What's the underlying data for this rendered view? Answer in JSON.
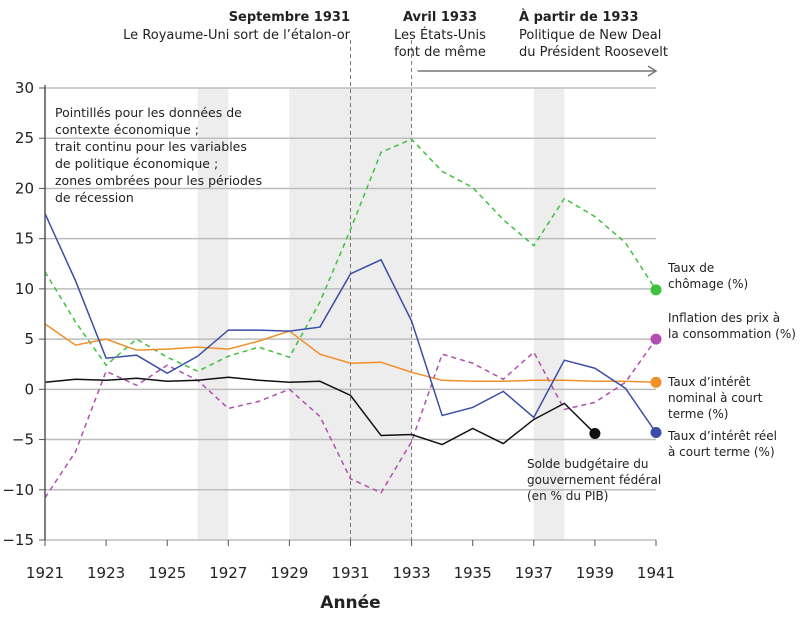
{
  "chart_data": {
    "type": "line",
    "xlabel": "Année",
    "ylabel": "",
    "xlim": [
      1921,
      1941
    ],
    "ylim": [
      -15,
      30
    ],
    "xticks": [
      1921,
      1923,
      1925,
      1927,
      1929,
      1931,
      1933,
      1935,
      1937,
      1939,
      1941
    ],
    "yticks": [
      -15,
      -10,
      -5,
      0,
      5,
      10,
      15,
      20,
      25,
      30
    ],
    "grid": "horizontal",
    "recessions": [
      [
        1926,
        1927
      ],
      [
        1929,
        1933
      ],
      [
        1937,
        1938
      ]
    ],
    "vlines": [
      1931,
      1933
    ],
    "note": [
      "Pointillés pour les données de",
      "contexte économique ;",
      "trait continu pour les variables",
      "de politique économique ;",
      "zones ombrées pour les périodes",
      "de récession"
    ],
    "annotations": [
      {
        "title": "Septembre 1931",
        "lines": [
          "Le Royaume-Uni sort de l’étalon-or"
        ]
      },
      {
        "title": "Avril 1933",
        "lines": [
          "Les États-Unis",
          "font de même"
        ]
      },
      {
        "title": "À partir de 1933",
        "lines": [
          "Politique de New Deal",
          "du Président Roosevelt"
        ]
      }
    ],
    "series": [
      {
        "name": "Taux de chômage (%)",
        "label_lines": [
          "Taux de",
          "chômage (%)"
        ],
        "color": "#3ec13e",
        "dashed": true,
        "x": [
          1921,
          1922,
          1923,
          1924,
          1925,
          1926,
          1927,
          1928,
          1929,
          1930,
          1931,
          1932,
          1933,
          1934,
          1935,
          1936,
          1937,
          1938,
          1939,
          1940,
          1941
        ],
        "values": [
          11.7,
          6.7,
          2.4,
          5.0,
          3.2,
          1.8,
          3.3,
          4.2,
          3.2,
          8.7,
          15.9,
          23.6,
          24.9,
          21.7,
          20.1,
          16.9,
          14.3,
          19.0,
          17.2,
          14.6,
          9.9
        ]
      },
      {
        "name": "Inflation des prix à la consommation (%)",
        "label_lines": [
          "Inflation des prix à",
          "la consommation (%)"
        ],
        "color": "#b24db2",
        "dashed": true,
        "x": [
          1921,
          1922,
          1923,
          1924,
          1925,
          1926,
          1927,
          1928,
          1929,
          1930,
          1931,
          1932,
          1933,
          1934,
          1935,
          1936,
          1937,
          1938,
          1939,
          1940,
          1941
        ],
        "values": [
          -10.8,
          -6.2,
          1.8,
          0.4,
          2.4,
          0.9,
          -1.9,
          -1.2,
          0,
          -2.7,
          -8.9,
          -10.3,
          -5.2,
          3.5,
          2.6,
          1.0,
          3.7,
          -2.0,
          -1.3,
          0.7,
          5.0
        ]
      },
      {
        "name": "Taux d’intérêt nominal à court terme (%)",
        "label_lines": [
          "Taux d’intérêt",
          "nominal à court",
          "terme (%)"
        ],
        "color": "#f0902a",
        "dashed": false,
        "x": [
          1921,
          1922,
          1923,
          1924,
          1925,
          1926,
          1927,
          1928,
          1929,
          1930,
          1931,
          1932,
          1933,
          1934,
          1935,
          1936,
          1937,
          1938,
          1939,
          1940,
          1941
        ],
        "values": [
          6.5,
          4.4,
          5.0,
          3.9,
          4.0,
          4.2,
          4.0,
          4.8,
          5.8,
          3.5,
          2.6,
          2.7,
          1.7,
          0.9,
          0.8,
          0.8,
          0.9,
          0.9,
          0.8,
          0.8,
          0.7
        ]
      },
      {
        "name": "Taux d’intérêt réel à court terme (%)",
        "label_lines": [
          "Taux d’intérêt réel",
          "à court terme (%)"
        ],
        "color": "#3a4ea8",
        "dashed": false,
        "x": [
          1921,
          1922,
          1923,
          1924,
          1925,
          1926,
          1927,
          1928,
          1929,
          1930,
          1931,
          1932,
          1933,
          1934,
          1935,
          1936,
          1937,
          1938,
          1939,
          1940,
          1941
        ],
        "values": [
          17.5,
          10.8,
          3.1,
          3.4,
          1.6,
          3.3,
          5.9,
          5.9,
          5.8,
          6.2,
          11.5,
          12.9,
          6.8,
          -2.6,
          -1.8,
          -0.2,
          -2.8,
          2.9,
          2.1,
          0.1,
          -4.3
        ]
      },
      {
        "name": "Solde budgétaire du gouvernement fédéral (en % du PIB)",
        "label_lines": [
          "Solde budgétaire du",
          "gouvernement fédéral",
          "(en % du PIB)"
        ],
        "color": "#111111",
        "dashed": false,
        "x": [
          1921,
          1922,
          1923,
          1924,
          1925,
          1926,
          1927,
          1928,
          1929,
          1930,
          1931,
          1932,
          1933,
          1934,
          1935,
          1936,
          1937,
          1938,
          1939
        ],
        "values": [
          0.7,
          1.0,
          0.9,
          1.1,
          0.8,
          0.9,
          1.2,
          0.9,
          0.7,
          0.8,
          -0.6,
          -4.6,
          -4.5,
          -5.5,
          -3.9,
          -5.4,
          -3.0,
          -1.4,
          -4.4
        ]
      }
    ]
  }
}
